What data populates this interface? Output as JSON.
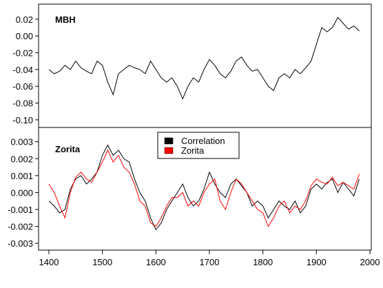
{
  "chart_data": [
    {
      "type": "line",
      "title": "MBH",
      "xlabel": "",
      "ylabel": "",
      "xlim": [
        1400,
        2000
      ],
      "ylim": [
        -0.105,
        0.033
      ],
      "yticks": [
        0.02,
        0.0,
        -0.02,
        -0.04,
        -0.06,
        -0.08,
        -0.1
      ],
      "ytick_labels": [
        "0.02",
        "0.00",
        "-0.02",
        "-0.04",
        "-0.06",
        "-0.08",
        "-0.10"
      ],
      "series": [
        {
          "color": "#000000",
          "x": [
            1400,
            1410,
            1420,
            1430,
            1440,
            1450,
            1460,
            1470,
            1480,
            1490,
            1500,
            1510,
            1520,
            1530,
            1540,
            1550,
            1560,
            1570,
            1580,
            1590,
            1600,
            1610,
            1620,
            1630,
            1640,
            1650,
            1660,
            1670,
            1680,
            1690,
            1700,
            1710,
            1720,
            1730,
            1740,
            1750,
            1760,
            1770,
            1780,
            1790,
            1800,
            1810,
            1820,
            1830,
            1840,
            1850,
            1860,
            1870,
            1880,
            1890,
            1900,
            1910,
            1920,
            1930,
            1940,
            1950,
            1960,
            1970,
            1980
          ],
          "y": [
            -0.04,
            -0.045,
            -0.042,
            -0.035,
            -0.04,
            -0.03,
            -0.038,
            -0.042,
            -0.045,
            -0.03,
            -0.035,
            -0.055,
            -0.07,
            -0.045,
            -0.04,
            -0.035,
            -0.038,
            -0.04,
            -0.045,
            -0.03,
            -0.04,
            -0.05,
            -0.055,
            -0.05,
            -0.06,
            -0.075,
            -0.06,
            -0.05,
            -0.055,
            -0.04,
            -0.028,
            -0.035,
            -0.045,
            -0.05,
            -0.042,
            -0.03,
            -0.025,
            -0.035,
            -0.042,
            -0.04,
            -0.05,
            -0.06,
            -0.065,
            -0.05,
            -0.045,
            -0.05,
            -0.04,
            -0.045,
            -0.038,
            -0.03,
            -0.01,
            0.01,
            0.005,
            0.01,
            0.022,
            0.015,
            0.008,
            0.012,
            0.006
          ]
        }
      ]
    },
    {
      "type": "line",
      "title": "Zorita",
      "xlabel": "",
      "ylabel": "",
      "xlim": [
        1400,
        2000
      ],
      "ylim": [
        -0.0032,
        0.0036
      ],
      "xticks": [
        1400,
        1500,
        1600,
        1700,
        1800,
        1900,
        2000
      ],
      "xtick_labels": [
        "1400",
        "1500",
        "1600",
        "1700",
        "1800",
        "1900",
        "2000"
      ],
      "yticks": [
        0.003,
        0.002,
        0.001,
        0.0,
        -0.001,
        -0.002,
        -0.003
      ],
      "ytick_labels": [
        "0.003",
        "0.002",
        "0.001",
        "0.000",
        "-0.001",
        "-0.002",
        "-0.003"
      ],
      "legend": {
        "placement": "top-center",
        "entries": [
          "Correlation",
          "Zorita"
        ]
      },
      "series": [
        {
          "name": "Correlation",
          "color": "#000000",
          "x": [
            1400,
            1410,
            1420,
            1430,
            1440,
            1450,
            1460,
            1470,
            1480,
            1490,
            1500,
            1510,
            1520,
            1530,
            1540,
            1550,
            1560,
            1570,
            1580,
            1590,
            1600,
            1610,
            1620,
            1630,
            1640,
            1650,
            1660,
            1670,
            1680,
            1690,
            1700,
            1710,
            1720,
            1730,
            1740,
            1750,
            1760,
            1770,
            1780,
            1790,
            1800,
            1810,
            1820,
            1830,
            1840,
            1850,
            1860,
            1870,
            1880,
            1890,
            1900,
            1910,
            1920,
            1930,
            1940,
            1950,
            1960,
            1970,
            1980
          ],
          "y": [
            -0.0005,
            -0.0008,
            -0.0012,
            -0.001,
            0.0002,
            0.0008,
            0.001,
            0.0005,
            0.0008,
            0.0012,
            0.0022,
            0.0028,
            0.0022,
            0.0025,
            0.002,
            0.0018,
            0.0008,
            0.0,
            -0.0005,
            -0.0015,
            -0.0022,
            -0.0018,
            -0.001,
            -0.0005,
            0.0,
            0.0005,
            -0.0003,
            -0.0008,
            -0.0005,
            0.0002,
            0.0012,
            0.0005,
            0.0,
            -0.0003,
            0.0005,
            0.0008,
            0.0004,
            0.0,
            -0.0008,
            -0.0005,
            -0.0008,
            -0.0015,
            -0.001,
            -0.0005,
            -0.0008,
            -0.001,
            -0.0005,
            -0.0012,
            -0.0008,
            0.0002,
            0.0005,
            0.0002,
            0.0006,
            0.0008,
            0.0,
            0.0006,
            0.0002,
            -0.0002,
            0.0008
          ]
        },
        {
          "name": "Zorita",
          "color": "#ff0000",
          "x": [
            1400,
            1410,
            1420,
            1430,
            1440,
            1450,
            1460,
            1470,
            1480,
            1490,
            1500,
            1510,
            1520,
            1530,
            1540,
            1550,
            1560,
            1570,
            1580,
            1590,
            1600,
            1610,
            1620,
            1630,
            1640,
            1650,
            1660,
            1670,
            1680,
            1690,
            1700,
            1710,
            1720,
            1730,
            1740,
            1750,
            1760,
            1770,
            1780,
            1790,
            1800,
            1810,
            1820,
            1830,
            1840,
            1850,
            1860,
            1870,
            1880,
            1890,
            1900,
            1910,
            1920,
            1930,
            1940,
            1950,
            1960,
            1970,
            1980
          ],
          "y": [
            0.0005,
            0.0,
            -0.0008,
            -0.0015,
            0.0,
            0.0009,
            0.0012,
            0.0008,
            0.0006,
            0.0012,
            0.0018,
            0.0025,
            0.0018,
            0.0022,
            0.0015,
            0.0012,
            0.0005,
            -0.0005,
            -0.0008,
            -0.0018,
            -0.002,
            -0.0015,
            -0.0008,
            -0.0003,
            -0.0003,
            0.0,
            -0.0008,
            -0.0005,
            -0.0008,
            0.0,
            0.0005,
            0.0008,
            -0.0005,
            -0.001,
            0.0,
            0.0008,
            0.0005,
            0.0,
            -0.0005,
            -0.001,
            -0.0012,
            -0.002,
            -0.0015,
            -0.0008,
            -0.0005,
            -0.0012,
            -0.0008,
            -0.001,
            -0.0005,
            0.0004,
            0.0008,
            0.0006,
            0.0005,
            0.0009,
            0.0004,
            0.0006,
            0.0004,
            0.0002,
            0.0011
          ]
        }
      ]
    }
  ]
}
